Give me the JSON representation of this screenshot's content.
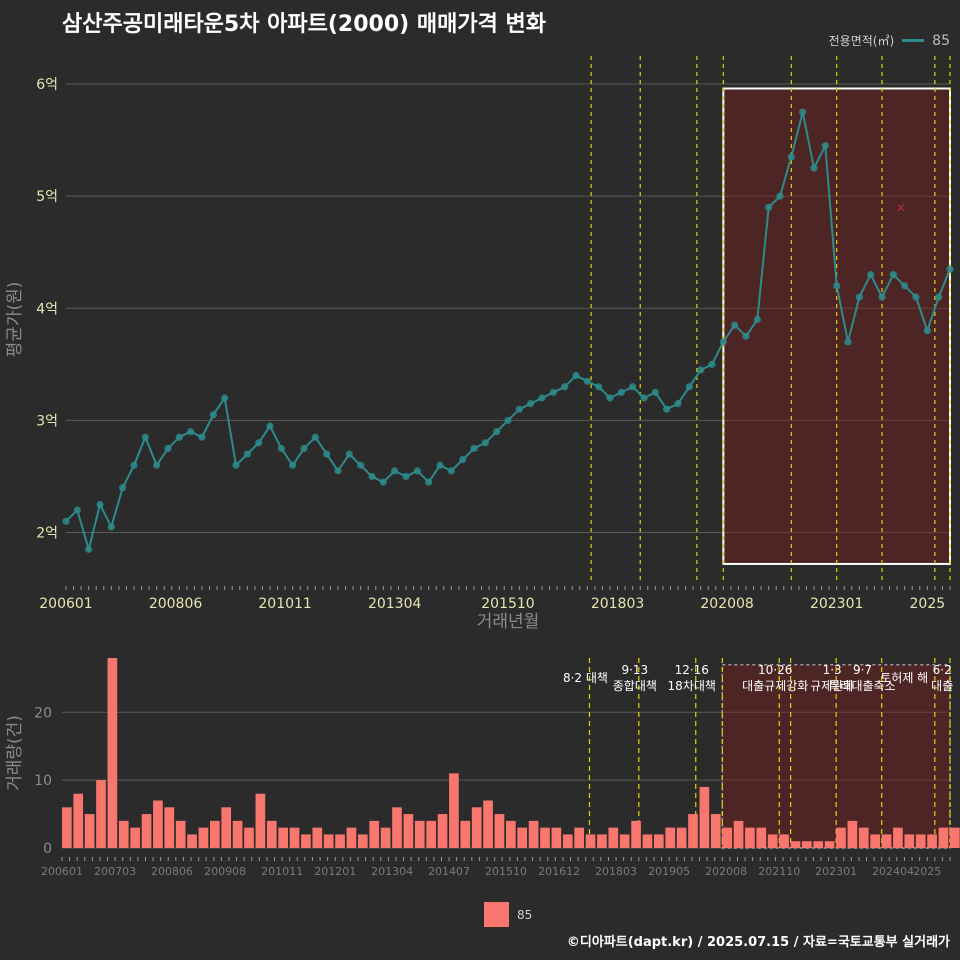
{
  "title": "삼산주공미래타운5차 아파트(2000) 매매가격 변화",
  "legend": {
    "title": "전용면적(㎡)",
    "series_label": "85",
    "color": "#2e8b8b"
  },
  "bar_legend": {
    "label": "85",
    "color": "#f8766d"
  },
  "footer": "©디아파트(dapt.kr) / 2025.07.15 / 자료=국토교통부 실거래가",
  "colors": {
    "background": "#2b2b2b",
    "line": "#2e8b8b",
    "bar": "#f8766d",
    "policy_line": "#e6d200",
    "highlight": "#7a1f1f"
  },
  "chart_data": [
    {
      "type": "line",
      "title": "삼산주공미래타운5차 아파트(2000) 매매가격 변화",
      "xlabel": "거래년월",
      "ylabel": "평균가(원)",
      "x_ticks": [
        "200601",
        "200806",
        "201011",
        "201304",
        "201510",
        "201803",
        "202008",
        "202301",
        "2025"
      ],
      "y_ticks": [
        {
          "value": 2,
          "label": "2억"
        },
        {
          "value": 3,
          "label": "3억"
        },
        {
          "value": 4,
          "label": "4억"
        },
        {
          "value": 5,
          "label": "5억"
        },
        {
          "value": 6,
          "label": "6억"
        }
      ],
      "ylim": [
        1.55,
        6.25
      ],
      "x_range": [
        "2006-01",
        "2025-07"
      ],
      "series": [
        {
          "name": "85",
          "points": [
            {
              "x": "2006-01",
              "y": 2.1
            },
            {
              "x": "2006-04",
              "y": 2.2
            },
            {
              "x": "2006-07",
              "y": 1.85
            },
            {
              "x": "2006-10",
              "y": 2.25
            },
            {
              "x": "2007-01",
              "y": 2.05
            },
            {
              "x": "2007-04",
              "y": 2.4
            },
            {
              "x": "2007-07",
              "y": 2.6
            },
            {
              "x": "2007-10",
              "y": 2.85
            },
            {
              "x": "2008-01",
              "y": 2.6
            },
            {
              "x": "2008-04",
              "y": 2.75
            },
            {
              "x": "2008-07",
              "y": 2.85
            },
            {
              "x": "2008-10",
              "y": 2.9
            },
            {
              "x": "2009-01",
              "y": 2.85
            },
            {
              "x": "2009-04",
              "y": 3.05
            },
            {
              "x": "2009-07",
              "y": 3.2
            },
            {
              "x": "2009-10",
              "y": 2.6
            },
            {
              "x": "2010-01",
              "y": 2.7
            },
            {
              "x": "2010-04",
              "y": 2.8
            },
            {
              "x": "2010-07",
              "y": 2.95
            },
            {
              "x": "2010-10",
              "y": 2.75
            },
            {
              "x": "2011-01",
              "y": 2.6
            },
            {
              "x": "2011-04",
              "y": 2.75
            },
            {
              "x": "2011-07",
              "y": 2.85
            },
            {
              "x": "2011-10",
              "y": 2.7
            },
            {
              "x": "2012-01",
              "y": 2.55
            },
            {
              "x": "2012-04",
              "y": 2.7
            },
            {
              "x": "2012-07",
              "y": 2.6
            },
            {
              "x": "2012-10",
              "y": 2.5
            },
            {
              "x": "2013-01",
              "y": 2.45
            },
            {
              "x": "2013-04",
              "y": 2.55
            },
            {
              "x": "2013-07",
              "y": 2.5
            },
            {
              "x": "2013-10",
              "y": 2.55
            },
            {
              "x": "2014-01",
              "y": 2.45
            },
            {
              "x": "2014-04",
              "y": 2.6
            },
            {
              "x": "2014-07",
              "y": 2.55
            },
            {
              "x": "2014-10",
              "y": 2.65
            },
            {
              "x": "2015-01",
              "y": 2.75
            },
            {
              "x": "2015-04",
              "y": 2.8
            },
            {
              "x": "2015-07",
              "y": 2.9
            },
            {
              "x": "2015-10",
              "y": 3.0
            },
            {
              "x": "2016-01",
              "y": 3.1
            },
            {
              "x": "2016-04",
              "y": 3.15
            },
            {
              "x": "2016-07",
              "y": 3.2
            },
            {
              "x": "2016-10",
              "y": 3.25
            },
            {
              "x": "2017-01",
              "y": 3.3
            },
            {
              "x": "2017-04",
              "y": 3.4
            },
            {
              "x": "2017-07",
              "y": 3.35
            },
            {
              "x": "2017-10",
              "y": 3.3
            },
            {
              "x": "2018-01",
              "y": 3.2
            },
            {
              "x": "2018-04",
              "y": 3.25
            },
            {
              "x": "2018-07",
              "y": 3.3
            },
            {
              "x": "2018-10",
              "y": 3.2
            },
            {
              "x": "2019-01",
              "y": 3.25
            },
            {
              "x": "2019-04",
              "y": 3.1
            },
            {
              "x": "2019-07",
              "y": 3.15
            },
            {
              "x": "2019-10",
              "y": 3.3
            },
            {
              "x": "2020-01",
              "y": 3.45
            },
            {
              "x": "2020-04",
              "y": 3.5
            },
            {
              "x": "2020-07",
              "y": 3.7
            },
            {
              "x": "2020-10",
              "y": 3.85
            },
            {
              "x": "2021-01",
              "y": 3.75
            },
            {
              "x": "2021-04",
              "y": 3.9
            },
            {
              "x": "2021-07",
              "y": 4.9
            },
            {
              "x": "2021-10",
              "y": 5.0
            },
            {
              "x": "2022-01",
              "y": 5.35
            },
            {
              "x": "2022-04",
              "y": 5.75
            },
            {
              "x": "2022-07",
              "y": 5.25
            },
            {
              "x": "2022-10",
              "y": 5.45
            },
            {
              "x": "2023-01",
              "y": 4.2
            },
            {
              "x": "2023-04",
              "y": 3.7
            },
            {
              "x": "2023-07",
              "y": 4.1
            },
            {
              "x": "2023-10",
              "y": 4.3
            },
            {
              "x": "2024-01",
              "y": 4.1
            },
            {
              "x": "2024-04",
              "y": 4.3
            },
            {
              "x": "2024-07",
              "y": 4.2
            },
            {
              "x": "2024-10",
              "y": 4.1
            },
            {
              "x": "2025-01",
              "y": 3.8
            },
            {
              "x": "2025-04",
              "y": 4.1
            },
            {
              "x": "2025-07",
              "y": 4.35
            }
          ]
        }
      ],
      "outliers": [
        {
          "x": "2024-06",
          "y": 4.9,
          "label": "×"
        }
      ],
      "policy_lines": [
        "2017-08",
        "2018-09",
        "2019-12",
        "2020-07",
        "2022-01",
        "2023-01",
        "2024-01",
        "2025-03",
        "2025-07"
      ],
      "highlight_range": [
        "2020-07",
        "2025-07"
      ]
    },
    {
      "type": "bar",
      "xlabel": "",
      "ylabel": "거래량(건)",
      "x_ticks": [
        "200601",
        "200703",
        "200806",
        "200908",
        "201011",
        "201201",
        "201304",
        "201407",
        "201510",
        "201612",
        "201803",
        "201905",
        "202008",
        "202110",
        "202301",
        "202404",
        "2025"
      ],
      "y_ticks": [
        0,
        10,
        20
      ],
      "ylim": [
        0,
        28
      ],
      "x_range": [
        "2006-01",
        "2025-07"
      ],
      "series": [
        {
          "name": "85",
          "values_by_quarter": [
            {
              "x": "2006-01",
              "y": 6
            },
            {
              "x": "2006-04",
              "y": 8
            },
            {
              "x": "2006-07",
              "y": 5
            },
            {
              "x": "2006-10",
              "y": 10
            },
            {
              "x": "2007-01",
              "y": 28
            },
            {
              "x": "2007-04",
              "y": 4
            },
            {
              "x": "2007-07",
              "y": 3
            },
            {
              "x": "2007-10",
              "y": 5
            },
            {
              "x": "2008-01",
              "y": 7
            },
            {
              "x": "2008-04",
              "y": 6
            },
            {
              "x": "2008-07",
              "y": 4
            },
            {
              "x": "2008-10",
              "y": 2
            },
            {
              "x": "2009-01",
              "y": 3
            },
            {
              "x": "2009-04",
              "y": 4
            },
            {
              "x": "2009-07",
              "y": 6
            },
            {
              "x": "2009-10",
              "y": 4
            },
            {
              "x": "2010-01",
              "y": 3
            },
            {
              "x": "2010-04",
              "y": 8
            },
            {
              "x": "2010-07",
              "y": 4
            },
            {
              "x": "2010-10",
              "y": 3
            },
            {
              "x": "2011-01",
              "y": 3
            },
            {
              "x": "2011-04",
              "y": 2
            },
            {
              "x": "2011-07",
              "y": 3
            },
            {
              "x": "2011-10",
              "y": 2
            },
            {
              "x": "2012-01",
              "y": 2
            },
            {
              "x": "2012-04",
              "y": 3
            },
            {
              "x": "2012-07",
              "y": 2
            },
            {
              "x": "2012-10",
              "y": 4
            },
            {
              "x": "2013-01",
              "y": 3
            },
            {
              "x": "2013-04",
              "y": 6
            },
            {
              "x": "2013-07",
              "y": 5
            },
            {
              "x": "2013-10",
              "y": 4
            },
            {
              "x": "2014-01",
              "y": 4
            },
            {
              "x": "2014-04",
              "y": 5
            },
            {
              "x": "2014-07",
              "y": 11
            },
            {
              "x": "2014-10",
              "y": 4
            },
            {
              "x": "2015-01",
              "y": 6
            },
            {
              "x": "2015-04",
              "y": 7
            },
            {
              "x": "2015-07",
              "y": 5
            },
            {
              "x": "2015-10",
              "y": 4
            },
            {
              "x": "2016-01",
              "y": 3
            },
            {
              "x": "2016-04",
              "y": 4
            },
            {
              "x": "2016-07",
              "y": 3
            },
            {
              "x": "2016-10",
              "y": 3
            },
            {
              "x": "2017-01",
              "y": 2
            },
            {
              "x": "2017-04",
              "y": 3
            },
            {
              "x": "2017-07",
              "y": 2
            },
            {
              "x": "2017-10",
              "y": 2
            },
            {
              "x": "2018-01",
              "y": 3
            },
            {
              "x": "2018-04",
              "y": 2
            },
            {
              "x": "2018-07",
              "y": 4
            },
            {
              "x": "2018-10",
              "y": 2
            },
            {
              "x": "2019-01",
              "y": 2
            },
            {
              "x": "2019-04",
              "y": 3
            },
            {
              "x": "2019-07",
              "y": 3
            },
            {
              "x": "2019-10",
              "y": 5
            },
            {
              "x": "2020-01",
              "y": 9
            },
            {
              "x": "2020-04",
              "y": 5
            },
            {
              "x": "2020-07",
              "y": 3
            },
            {
              "x": "2020-10",
              "y": 4
            },
            {
              "x": "2021-01",
              "y": 3
            },
            {
              "x": "2021-04",
              "y": 3
            },
            {
              "x": "2021-07",
              "y": 2
            },
            {
              "x": "2021-10",
              "y": 2
            },
            {
              "x": "2022-01",
              "y": 1
            },
            {
              "x": "2022-04",
              "y": 1
            },
            {
              "x": "2022-07",
              "y": 1
            },
            {
              "x": "2022-10",
              "y": 1
            },
            {
              "x": "2023-01",
              "y": 3
            },
            {
              "x": "2023-04",
              "y": 4
            },
            {
              "x": "2023-07",
              "y": 3
            },
            {
              "x": "2023-10",
              "y": 2
            },
            {
              "x": "2024-01",
              "y": 2
            },
            {
              "x": "2024-04",
              "y": 3
            },
            {
              "x": "2024-07",
              "y": 2
            },
            {
              "x": "2024-10",
              "y": 2
            },
            {
              "x": "2025-01",
              "y": 2
            },
            {
              "x": "2025-04",
              "y": 3
            },
            {
              "x": "2025-07",
              "y": 3
            }
          ]
        }
      ],
      "policy_lines": [
        "2017-08",
        "2018-09",
        "2019-12",
        "2020-07",
        "2021-10",
        "2022-01",
        "2023-01",
        "2024-01",
        "2025-03",
        "2025-07"
      ],
      "annotations": [
        {
          "x": "2017-08",
          "lines": [
            "8·2 대책"
          ]
        },
        {
          "x": "2018-09",
          "lines": [
            "9·13",
            "종합대책"
          ]
        },
        {
          "x": "2019-12",
          "lines": [
            "12·16",
            "18차대책"
          ]
        },
        {
          "x": "2021-10",
          "lines": [
            "10·26",
            "대출규제강화"
          ]
        },
        {
          "x": "2023-01",
          "lines": [
            "1·3",
            "규제완화"
          ]
        },
        {
          "x": "2023-09",
          "lines": [
            "9·7",
            "특례대출축소"
          ]
        },
        {
          "x": "2024-08",
          "lines": [
            "토허제 해"
          ]
        },
        {
          "x": "2025-06",
          "lines": [
            "6·2",
            "대출"
          ]
        }
      ],
      "highlight_range": [
        "2020-07",
        "2025-07"
      ]
    }
  ]
}
